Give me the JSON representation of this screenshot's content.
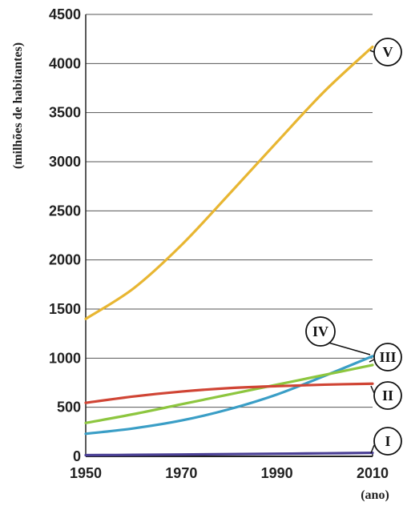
{
  "chart_data": {
    "type": "line",
    "xlabel": "(ano)",
    "ylabel": "(milhões de habitantes)",
    "xlim": [
      1950,
      2010
    ],
    "ylim": [
      0,
      4500
    ],
    "x_ticks": [
      1950,
      1970,
      1990,
      2010
    ],
    "y_ticks": [
      0,
      500,
      1000,
      1500,
      2000,
      2500,
      3000,
      3500,
      4000,
      4500
    ],
    "grid": "horizontal",
    "series": [
      {
        "name": "V",
        "color": "#e8b632",
        "x": [
          1950,
          1960,
          1970,
          1980,
          1990,
          2000,
          2010
        ],
        "values": [
          1400,
          1710,
          2150,
          2670,
          3200,
          3720,
          4170
        ]
      },
      {
        "name": "IV",
        "color": "#3a9ec6",
        "x": [
          1950,
          1960,
          1970,
          1980,
          1990,
          2000,
          2010
        ],
        "values": [
          230,
          285,
          365,
          480,
          630,
          820,
          1020
        ]
      },
      {
        "name": "III",
        "color": "#8dc63f",
        "x": [
          1950,
          1960,
          1970,
          1980,
          1990,
          2000,
          2010
        ],
        "values": [
          340,
          430,
          530,
          630,
          730,
          830,
          930
        ]
      },
      {
        "name": "II",
        "color": "#d04535",
        "x": [
          1950,
          1960,
          1970,
          1980,
          1990,
          2000,
          2010
        ],
        "values": [
          545,
          610,
          660,
          695,
          715,
          730,
          740
        ]
      },
      {
        "name": "I",
        "color": "#4a3f95",
        "x": [
          1950,
          1960,
          1970,
          1980,
          1990,
          2000,
          2010
        ],
        "values": [
          12,
          15,
          19,
          23,
          27,
          31,
          36
        ]
      }
    ]
  }
}
